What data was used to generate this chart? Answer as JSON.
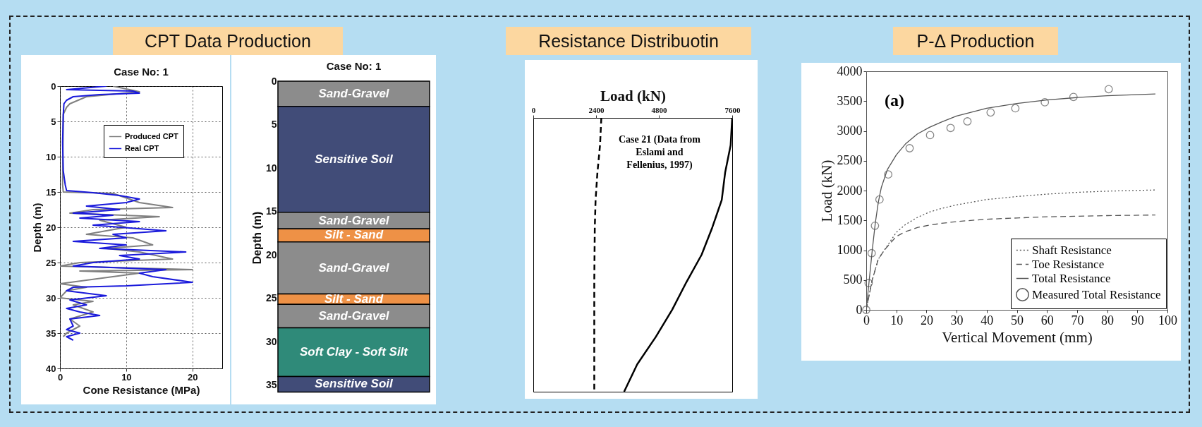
{
  "chart_data": [
    {
      "type": "line",
      "title": "CPT Data Production",
      "subtitle": "Case No: 1",
      "xlabel": "Cone Resistance (MPa)",
      "ylabel": "Depth (m)",
      "xlim": [
        0,
        24.5
      ],
      "xticks": [
        0,
        10,
        20
      ],
      "ylim": [
        40,
        0
      ],
      "yticks": [
        0,
        5,
        10,
        15,
        20,
        25,
        30,
        35,
        40
      ],
      "grid": true,
      "legend": "top right",
      "marker": "none",
      "series": [
        {
          "name": "Produced CPT",
          "color": "#808080",
          "line_style": "solid",
          "x": [
            8,
            12,
            4,
            1.5,
            1,
            0.5,
            0.4,
            0.5,
            8,
            12,
            17,
            5,
            1.5,
            15,
            6,
            10,
            4,
            11,
            14,
            7,
            12,
            17,
            3,
            0,
            20,
            3,
            12,
            8,
            0,
            4,
            1,
            0,
            5,
            2,
            5,
            1.5,
            3,
            1,
            0.5
          ],
          "values": [
            0,
            0.8,
            1.5,
            2.5,
            3,
            4,
            14,
            15,
            15.2,
            16.5,
            17.2,
            17.5,
            18,
            18.5,
            19,
            20,
            21,
            21.5,
            22.5,
            23,
            23.5,
            24.5,
            25,
            25.5,
            26,
            26.2,
            26.5,
            27,
            28,
            28.5,
            29,
            30,
            30.5,
            31,
            32,
            33,
            34,
            35,
            35.5
          ]
        },
        {
          "name": "Real CPT",
          "color": "#1a1adb",
          "line_style": "solid",
          "x": [
            7,
            1,
            11,
            12,
            6,
            2,
            1,
            0.6,
            0.5,
            0.4,
            0.5,
            0.8,
            1,
            5,
            9,
            12,
            10,
            4,
            9,
            2,
            8,
            3,
            12,
            5,
            16,
            8,
            10,
            2,
            10,
            6,
            19,
            9,
            12,
            5,
            2,
            16,
            12,
            14,
            20,
            10,
            2,
            1,
            7,
            1.5,
            4,
            1,
            3,
            6,
            1.5,
            2,
            1,
            3,
            1,
            2
          ],
          "values": [
            0,
            0.5,
            0.7,
            1,
            1.2,
            1.5,
            2,
            2.5,
            4,
            8,
            12,
            14,
            14.8,
            15.1,
            15.5,
            16,
            16.5,
            17,
            17.5,
            18,
            18.3,
            18.7,
            19.2,
            19.7,
            20.5,
            21,
            21.5,
            22,
            22.5,
            23,
            23.5,
            24,
            24.5,
            25,
            25.5,
            26,
            26.5,
            27,
            27.8,
            28.3,
            28.5,
            29,
            29.7,
            30.3,
            31,
            31.5,
            32,
            32.5,
            33,
            34,
            34.5,
            35,
            35.5,
            36
          ]
        }
      ]
    },
    {
      "type": "bar",
      "stacked": true,
      "title": "Case No: 1",
      "ylabel": "Depth (m)",
      "categories": [
        null
      ],
      "ylim": [
        36,
        0
      ],
      "yticks": [
        0,
        5,
        10,
        15,
        20,
        25,
        30,
        35
      ],
      "tick_labels": "y",
      "series": [
        {
          "name": "Sand-Gravel",
          "color": "#8c8c8c",
          "values": [
            2.9
          ]
        },
        {
          "name": "Sensitive Soil",
          "color": "#414c78",
          "values": [
            12.2
          ]
        },
        {
          "name": "Sand-Gravel",
          "color": "#8c8c8c",
          "values": [
            1.9
          ]
        },
        {
          "name": "Silt - Sand",
          "color": "#ee9146",
          "values": [
            1.5
          ]
        },
        {
          "name": "Sand-Gravel",
          "color": "#8c8c8c",
          "values": [
            6.0
          ]
        },
        {
          "name": "Silt - Sand",
          "color": "#ee9146",
          "values": [
            1.2
          ]
        },
        {
          "name": "Sand-Gravel",
          "color": "#8c8c8c",
          "values": [
            2.7
          ]
        },
        {
          "name": "Soft Clay - Soft Silt",
          "color": "#2f8a79",
          "values": [
            5.6
          ]
        },
        {
          "name": "Sensitive Soil",
          "color": "#414c78",
          "values": [
            1.8
          ]
        }
      ]
    },
    {
      "type": "line",
      "orientation": "horizontal",
      "title": "Resistance Distribuotin",
      "xlabel": "Load (kN)",
      "xlim": [
        0,
        7600
      ],
      "xticks": [
        0,
        2400,
        4800,
        7600
      ],
      "tick_labels": "x",
      "categories": [
        null,
        null,
        null,
        null,
        null,
        null,
        null,
        null,
        null,
        null,
        null
      ],
      "annotations": [
        "Case 21 (Data from Eslami and Fellenius, 1997)"
      ],
      "series": [
        {
          "color": "#000000",
          "line_style": "dashed",
          "values": [
            2600,
            2550,
            2450,
            2380,
            2350,
            2340,
            2330,
            2330,
            2330,
            2330,
            2330
          ]
        },
        {
          "color": "#000000",
          "line_style": "solid",
          "values": [
            7600,
            7540,
            7330,
            7200,
            6840,
            6430,
            5850,
            5310,
            4680,
            3970,
            3470
          ]
        }
      ]
    },
    {
      "type": "line",
      "title": "P-Δ Production",
      "xlabel": "Vertical Movement (mm)",
      "ylabel": "Load (kN)",
      "xlim": [
        0,
        100
      ],
      "xticks": [
        0,
        10,
        20,
        30,
        40,
        50,
        60,
        70,
        80,
        90,
        100
      ],
      "ylim": [
        0,
        4000
      ],
      "yticks": [
        0,
        500,
        1000,
        1500,
        2000,
        2500,
        3000,
        3500,
        4000
      ],
      "legend": "bottom right",
      "annotations": [
        "(a)"
      ],
      "series": [
        {
          "name": "Shaft Resistance",
          "color": "#555555",
          "line_style": "dotted",
          "x": [
            0,
            2,
            4,
            6,
            8,
            10,
            13,
            17,
            21,
            25,
            30,
            40,
            50,
            60,
            70,
            80,
            96
          ],
          "values": [
            0,
            500,
            850,
            1000,
            1150,
            1300,
            1430,
            1550,
            1640,
            1700,
            1760,
            1850,
            1900,
            1940,
            1970,
            1990,
            2010
          ]
        },
        {
          "name": "Toe Resistance",
          "color": "#555555",
          "line_style": "dashed",
          "x": [
            0,
            2,
            4,
            6,
            8,
            10,
            13,
            17,
            21,
            25,
            30,
            40,
            50,
            60,
            70,
            80,
            96
          ],
          "values": [
            0,
            500,
            850,
            1000,
            1120,
            1230,
            1310,
            1380,
            1420,
            1450,
            1480,
            1520,
            1540,
            1560,
            1570,
            1580,
            1590
          ]
        },
        {
          "name": "Total Resistance",
          "color": "#555555",
          "line_style": "solid",
          "x": [
            0,
            1,
            2,
            3,
            4,
            5,
            7,
            10,
            13,
            17,
            21,
            25,
            30,
            40,
            50,
            60,
            70,
            80,
            96
          ],
          "values": [
            0,
            500,
            1000,
            1450,
            1800,
            2050,
            2350,
            2600,
            2780,
            2950,
            3060,
            3150,
            3250,
            3380,
            3460,
            3520,
            3560,
            3590,
            3620
          ]
        },
        {
          "name": "Measured Total Resistance",
          "type": "scatter",
          "marker": "circle",
          "color": "#555555",
          "x": [
            0,
            0.8,
            1.8,
            2.9,
            4.4,
            7.3,
            14.4,
            21.2,
            28,
            33.6,
            41.3,
            49.5,
            59.3,
            68.8,
            80.5
          ],
          "values": [
            0,
            450,
            950,
            1410,
            1850,
            2270,
            2710,
            2930,
            3050,
            3160,
            3310,
            3380,
            3480,
            3570,
            3700
          ]
        }
      ]
    }
  ]
}
